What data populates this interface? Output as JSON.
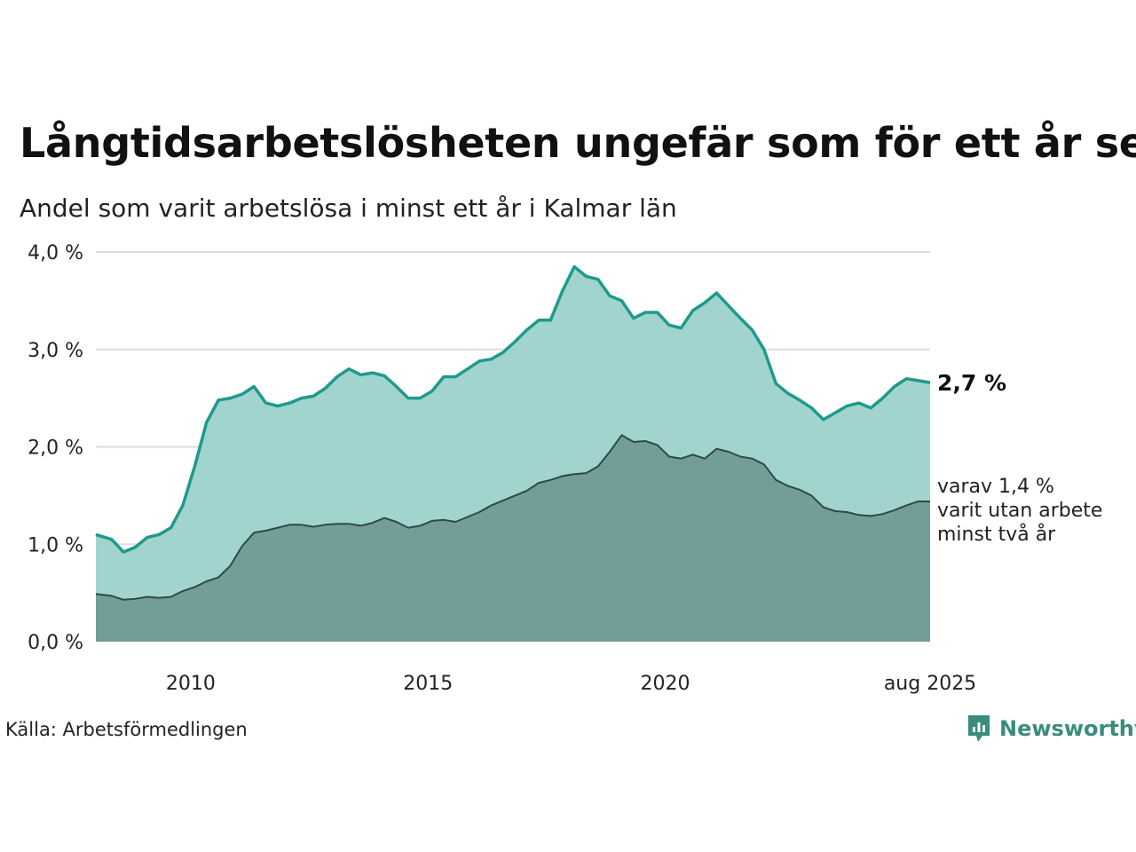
{
  "title": "Långtidsarbetslösheten ungefär som för ett år sen",
  "subtitle": "Andel som varit arbetslösa i minst ett år i Kalmar län",
  "source": "Källa: Arbetsförmedlingen",
  "brand": "Newsworthy",
  "colors": {
    "total_line": "#1e9a8a",
    "total_fill": "#a2d4cf",
    "long_line": "#2e4a44",
    "long_fill": "#729e97",
    "grid": "#dddddd"
  },
  "chart_data": {
    "type": "area",
    "xlim": [
      "2008-01",
      "2025-08"
    ],
    "ylim": [
      0,
      4
    ],
    "x_ticks": [
      "2010",
      "2015",
      "2020",
      "aug 2025"
    ],
    "y_ticks": [
      "0,0 %",
      "1,0 %",
      "2,0 %",
      "3,0 %",
      "4,0 %"
    ],
    "grid": true,
    "series": [
      {
        "key": "total",
        "end_label": "2,7 %",
        "points": [
          [
            "2008-01",
            1.1
          ],
          [
            "2008-05",
            1.05
          ],
          [
            "2008-08",
            0.92
          ],
          [
            "2008-11",
            0.97
          ],
          [
            "2009-02",
            1.07
          ],
          [
            "2009-05",
            1.1
          ],
          [
            "2009-08",
            1.17
          ],
          [
            "2009-11",
            1.4
          ],
          [
            "2010-02",
            1.8
          ],
          [
            "2010-05",
            2.25
          ],
          [
            "2010-08",
            2.48
          ],
          [
            "2010-11",
            2.5
          ],
          [
            "2011-02",
            2.54
          ],
          [
            "2011-05",
            2.62
          ],
          [
            "2011-08",
            2.45
          ],
          [
            "2011-11",
            2.42
          ],
          [
            "2012-02",
            2.45
          ],
          [
            "2012-05",
            2.5
          ],
          [
            "2012-08",
            2.52
          ],
          [
            "2012-11",
            2.6
          ],
          [
            "2013-02",
            2.72
          ],
          [
            "2013-05",
            2.8
          ],
          [
            "2013-08",
            2.74
          ],
          [
            "2013-11",
            2.76
          ],
          [
            "2014-02",
            2.73
          ],
          [
            "2014-05",
            2.62
          ],
          [
            "2014-08",
            2.5
          ],
          [
            "2014-11",
            2.5
          ],
          [
            "2015-02",
            2.57
          ],
          [
            "2015-05",
            2.72
          ],
          [
            "2015-08",
            2.72
          ],
          [
            "2015-11",
            2.8
          ],
          [
            "2016-02",
            2.88
          ],
          [
            "2016-05",
            2.9
          ],
          [
            "2016-08",
            2.97
          ],
          [
            "2016-11",
            3.08
          ],
          [
            "2017-02",
            3.2
          ],
          [
            "2017-05",
            3.3
          ],
          [
            "2017-08",
            3.3
          ],
          [
            "2017-11",
            3.6
          ],
          [
            "2018-02",
            3.85
          ],
          [
            "2018-05",
            3.75
          ],
          [
            "2018-08",
            3.72
          ],
          [
            "2018-11",
            3.55
          ],
          [
            "2019-02",
            3.5
          ],
          [
            "2019-05",
            3.32
          ],
          [
            "2019-08",
            3.38
          ],
          [
            "2019-11",
            3.38
          ],
          [
            "2020-02",
            3.25
          ],
          [
            "2020-05",
            3.22
          ],
          [
            "2020-08",
            3.4
          ],
          [
            "2020-11",
            3.48
          ],
          [
            "2021-02",
            3.58
          ],
          [
            "2021-05",
            3.45
          ],
          [
            "2021-08",
            3.32
          ],
          [
            "2021-11",
            3.2
          ],
          [
            "2022-02",
            3.0
          ],
          [
            "2022-05",
            2.65
          ],
          [
            "2022-08",
            2.55
          ],
          [
            "2022-11",
            2.48
          ],
          [
            "2023-02",
            2.4
          ],
          [
            "2023-05",
            2.28
          ],
          [
            "2023-08",
            2.35
          ],
          [
            "2023-11",
            2.42
          ],
          [
            "2024-02",
            2.45
          ],
          [
            "2024-05",
            2.4
          ],
          [
            "2024-08",
            2.5
          ],
          [
            "2024-11",
            2.62
          ],
          [
            "2025-02",
            2.7
          ],
          [
            "2025-05",
            2.68
          ],
          [
            "2025-08",
            2.66
          ]
        ]
      },
      {
        "key": "long",
        "end_label": [
          "varav 1,4 %",
          "varit utan arbete",
          "minst två år"
        ],
        "points": [
          [
            "2008-01",
            0.49
          ],
          [
            "2008-05",
            0.47
          ],
          [
            "2008-08",
            0.43
          ],
          [
            "2008-11",
            0.44
          ],
          [
            "2009-02",
            0.46
          ],
          [
            "2009-05",
            0.45
          ],
          [
            "2009-08",
            0.46
          ],
          [
            "2009-11",
            0.52
          ],
          [
            "2010-02",
            0.56
          ],
          [
            "2010-05",
            0.62
          ],
          [
            "2010-08",
            0.66
          ],
          [
            "2010-11",
            0.78
          ],
          [
            "2011-02",
            0.98
          ],
          [
            "2011-05",
            1.12
          ],
          [
            "2011-08",
            1.14
          ],
          [
            "2011-11",
            1.17
          ],
          [
            "2012-02",
            1.2
          ],
          [
            "2012-05",
            1.2
          ],
          [
            "2012-08",
            1.18
          ],
          [
            "2012-11",
            1.2
          ],
          [
            "2013-02",
            1.21
          ],
          [
            "2013-05",
            1.21
          ],
          [
            "2013-08",
            1.19
          ],
          [
            "2013-11",
            1.22
          ],
          [
            "2014-02",
            1.27
          ],
          [
            "2014-05",
            1.23
          ],
          [
            "2014-08",
            1.17
          ],
          [
            "2014-11",
            1.19
          ],
          [
            "2015-02",
            1.24
          ],
          [
            "2015-05",
            1.25
          ],
          [
            "2015-08",
            1.23
          ],
          [
            "2015-11",
            1.28
          ],
          [
            "2016-02",
            1.33
          ],
          [
            "2016-05",
            1.4
          ],
          [
            "2016-08",
            1.45
          ],
          [
            "2016-11",
            1.5
          ],
          [
            "2017-02",
            1.55
          ],
          [
            "2017-05",
            1.63
          ],
          [
            "2017-08",
            1.66
          ],
          [
            "2017-11",
            1.7
          ],
          [
            "2018-02",
            1.72
          ],
          [
            "2018-05",
            1.73
          ],
          [
            "2018-08",
            1.8
          ],
          [
            "2018-11",
            1.95
          ],
          [
            "2019-02",
            2.12
          ],
          [
            "2019-05",
            2.05
          ],
          [
            "2019-08",
            2.06
          ],
          [
            "2019-11",
            2.02
          ],
          [
            "2020-02",
            1.9
          ],
          [
            "2020-05",
            1.88
          ],
          [
            "2020-08",
            1.92
          ],
          [
            "2020-11",
            1.88
          ],
          [
            "2021-02",
            1.98
          ],
          [
            "2021-05",
            1.95
          ],
          [
            "2021-08",
            1.9
          ],
          [
            "2021-11",
            1.88
          ],
          [
            "2022-02",
            1.82
          ],
          [
            "2022-05",
            1.66
          ],
          [
            "2022-08",
            1.6
          ],
          [
            "2022-11",
            1.56
          ],
          [
            "2023-02",
            1.5
          ],
          [
            "2023-05",
            1.38
          ],
          [
            "2023-08",
            1.34
          ],
          [
            "2023-11",
            1.33
          ],
          [
            "2024-02",
            1.3
          ],
          [
            "2024-05",
            1.29
          ],
          [
            "2024-08",
            1.31
          ],
          [
            "2024-11",
            1.35
          ],
          [
            "2025-02",
            1.4
          ],
          [
            "2025-05",
            1.44
          ],
          [
            "2025-08",
            1.44
          ]
        ]
      }
    ]
  }
}
